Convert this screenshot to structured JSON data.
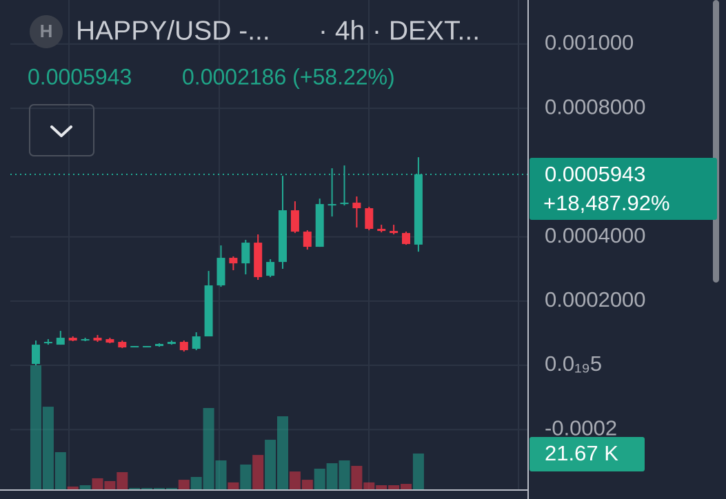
{
  "header": {
    "icon": "H",
    "symbol": "HAPPY/USD -...",
    "interval": "· 4h · DEXT...",
    "price": "0.0005943",
    "change": "0.0002186 (+58.22%)"
  },
  "chart_data": {
    "type": "candlestick",
    "open": [
      4.3e-06,
      6.86e-05,
      6.43e-05,
      8.58e-05,
      7.72e-05,
      8.58e-05,
      8.15e-05,
      7.29e-05,
      5.79e-05,
      5.79e-05,
      6.01e-05,
      6.65e-05,
      7.29e-05,
      5.15e-05,
      9.01e-05,
      0.0002488,
      0.0003346,
      0.0003174,
      0.0003818,
      0.0002788,
      0.0003217,
      0.0004826,
      0.0004161,
      0.0003689,
      0.0004976,
      0.0005019,
      0.0005062,
      0.000489,
      0.0004247,
      0.0004182,
      0.0004118,
      0.0003757
    ],
    "high": [
      7.72e-05,
      8.15e-05,
      0.0001072,
      9.01e-05,
      8.58e-05,
      9.44e-05,
      8.58e-05,
      7.72e-05,
      6.01e-05,
      6.01e-05,
      6.86e-05,
      7.72e-05,
      7.72e-05,
      0.0001029,
      0.0002938,
      0.0003732,
      0.0003389,
      0.0003904,
      0.0004075,
      0.0003303,
      0.0005898,
      0.0005105,
      0.0004204,
      0.000519,
      0.0006134,
      0.000622,
      0.0005255,
      0.0004933,
      0.0004375,
      0.0004375,
      0.0004161,
      0.0006477
    ],
    "low": [
      0,
      6.43e-05,
      6.43e-05,
      7.51e-05,
      7.51e-05,
      7.29e-05,
      6.86e-05,
      5.36e-05,
      5.79e-05,
      5.79e-05,
      5.79e-05,
      6.43e-05,
      4.29e-05,
      4.72e-05,
      9.01e-05,
      0.0002445,
      0.000296,
      0.0002831,
      0.000266,
      0.0002745,
      0.0003003,
      0.0004118,
      0.0003603,
      0.0003689,
      0.0004633,
      0.0004976,
      0.000429,
      0.0004204,
      0.0004139,
      0.0004075,
      0.0003753,
      0.0003539
    ],
    "close": [
      6.43e-05,
      7.29e-05,
      8.58e-05,
      7.72e-05,
      8.15e-05,
      7.72e-05,
      7.08e-05,
      5.58e-05,
      6.01e-05,
      6.01e-05,
      6.65e-05,
      7.29e-05,
      4.72e-05,
      9.01e-05,
      0.0002488,
      0.0003346,
      0.0003174,
      0.0003818,
      0.0002745,
      0.0003217,
      0.0004826,
      0.0004161,
      0.0003689,
      0.0005019,
      0.0005019,
      0.0005062,
      0.000489,
      0.0004247,
      0.0004182,
      0.0004118,
      0.0003775,
      0.0005943
    ],
    "volume": [
      75.0,
      50.0,
      22.5,
      1.7,
      2.5,
      6.7,
      5.0,
      10.4,
      0.8,
      0.8,
      0.8,
      0.8,
      5.8,
      7.5,
      49.2,
      17.5,
      4.2,
      15.0,
      20.8,
      30.0,
      44.2,
      10.8,
      5.8,
      12.5,
      15.8,
      17.5,
      14.2,
      4.2,
      2.5,
      2.5,
      3.3,
      21.67
    ],
    "volume_lim": [
      0,
      296
    ],
    "volume_label": {
      "value": 21.67,
      "label": "21.67 K"
    },
    "ylim": [
      -0.000386,
      0.001137
    ],
    "yticks": [
      {
        "value": 0.001,
        "label": "0.001000"
      },
      {
        "value": 0.0008,
        "label": "0.0008000"
      },
      {
        "value": 0.0004,
        "label": "0.0004000"
      },
      {
        "value": 0.0002,
        "label": "0.0002000"
      },
      {
        "value": 5e-20,
        "label": "0.0₁₉5"
      },
      -0.0002
    ],
    "grid": true,
    "up_color": "#22ab94",
    "down_color": "#f23645",
    "price_label": {
      "value": 0.0005943,
      "change": "+18,487.92%"
    }
  }
}
